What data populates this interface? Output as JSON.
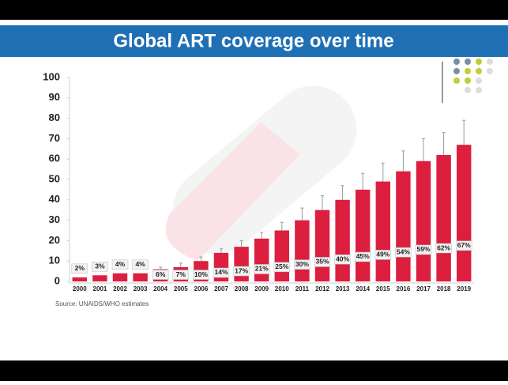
{
  "chart_data": {
    "type": "bar",
    "title": "Global ART coverage over time",
    "source": "Source: UNAIDS/WHO estimates",
    "categories": [
      "2000",
      "2001",
      "2002",
      "2003",
      "2004",
      "2005",
      "2006",
      "2007",
      "2008",
      "2009",
      "2010",
      "2011",
      "2012",
      "2013",
      "2014",
      "2015",
      "2016",
      "2017",
      "2018",
      "2019"
    ],
    "values": [
      2,
      3,
      4,
      4,
      6,
      7,
      10,
      14,
      17,
      21,
      25,
      30,
      35,
      40,
      45,
      49,
      54,
      59,
      62,
      67
    ],
    "value_labels": [
      "2%",
      "3%",
      "4%",
      "4%",
      "6%",
      "7%",
      "10%",
      "14%",
      "17%",
      "21%",
      "25%",
      "30%",
      "35%",
      "40%",
      "45%",
      "49%",
      "54%",
      "59%",
      "62%",
      "67%"
    ],
    "upper": [
      null,
      null,
      null,
      null,
      7,
      9,
      12,
      16,
      20,
      24,
      29,
      36,
      42,
      47,
      53,
      58,
      64,
      70,
      73,
      79
    ],
    "color": "#dc1f3f",
    "ylim": [
      0,
      100
    ],
    "yticks": [
      0,
      10,
      20,
      30,
      40,
      50,
      60,
      70,
      80,
      90,
      100
    ],
    "grid": false
  }
}
